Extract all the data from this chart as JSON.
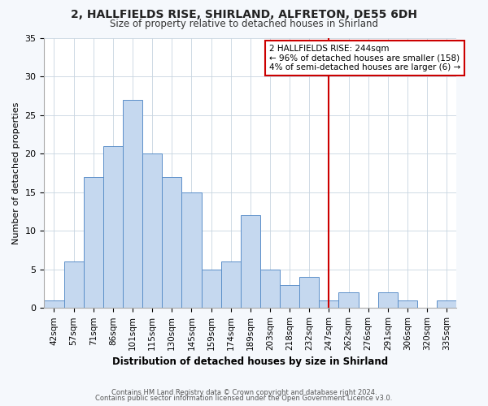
{
  "title": "2, HALLFIELDS RISE, SHIRLAND, ALFRETON, DE55 6DH",
  "subtitle": "Size of property relative to detached houses in Shirland",
  "xlabel": "Distribution of detached houses by size in Shirland",
  "ylabel": "Number of detached properties",
  "bin_labels": [
    "42sqm",
    "57sqm",
    "71sqm",
    "86sqm",
    "101sqm",
    "115sqm",
    "130sqm",
    "145sqm",
    "159sqm",
    "174sqm",
    "189sqm",
    "203sqm",
    "218sqm",
    "232sqm",
    "247sqm",
    "262sqm",
    "276sqm",
    "291sqm",
    "306sqm",
    "320sqm",
    "335sqm"
  ],
  "bar_heights": [
    1,
    6,
    17,
    21,
    27,
    20,
    17,
    15,
    5,
    6,
    12,
    5,
    3,
    4,
    1,
    2,
    0,
    2,
    1,
    0,
    1
  ],
  "bar_color": "#c5d8ef",
  "bar_edge_color": "#5b8fc9",
  "vline_x": 14,
  "vline_color": "#cc0000",
  "ylim": [
    0,
    35
  ],
  "yticks": [
    0,
    5,
    10,
    15,
    20,
    25,
    30,
    35
  ],
  "annotation_title": "2 HALLFIELDS RISE: 244sqm",
  "annotation_line1": "← 96% of detached houses are smaller (158)",
  "annotation_line2": "4% of semi-detached houses are larger (6) →",
  "footer1": "Contains HM Land Registry data © Crown copyright and database right 2024.",
  "footer2": "Contains public sector information licensed under the Open Government Licence v3.0.",
  "background_color": "#f5f8fc",
  "plot_background": "#ffffff"
}
